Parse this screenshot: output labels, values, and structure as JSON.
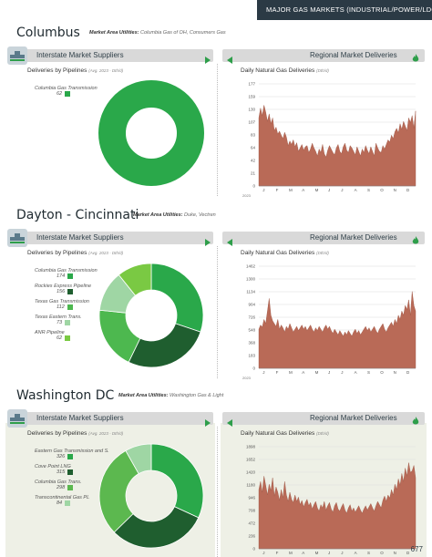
{
  "header": {
    "title": "MAJOR GAS MARKETS (INDUSTRIAL/POWER/LDC)"
  },
  "page_number": "677",
  "labels": {
    "interstate": "Interstate Market Suppliers",
    "regional": "Regional Market Deliveries",
    "deliveries_by_pipelines": "Deliveries by Pipelines",
    "avg_note": "(Avg. 2023 - Dth/d)",
    "daily_title": "Daily Natural Gas Deliveries",
    "daily_unit": "(Dth/d)",
    "market_area": "Market Area Utilities:",
    "year": "2023"
  },
  "colors": {
    "bar_grey": "#d9d9d9",
    "accent_green": "#2e9e4a",
    "area_fill": "#b96a57"
  },
  "sections": [
    {
      "city": "Columbus",
      "utilities": "Columbia Gas of OH, Consumers Gas",
      "pipelines": [
        {
          "name": "Columbia Gas Transmission",
          "value": "62",
          "color": "#2aa84a"
        }
      ],
      "chart_data": {
        "type": "area",
        "title": "Daily Natural Gas Deliveries",
        "xlabel": "2023",
        "ytick_labels": [
          "177",
          "159",
          "130",
          "107",
          "83",
          "64",
          "42",
          "21",
          "0"
        ],
        "ylim": [
          0,
          177
        ],
        "months": [
          "J",
          "F",
          "M",
          "A",
          "M",
          "J",
          "J",
          "A",
          "S",
          "O",
          "N",
          "D"
        ],
        "y": [
          118,
          135,
          122,
          140,
          128,
          112,
          125,
          108,
          118,
          96,
          102,
          90,
          95,
          88,
          82,
          93,
          85,
          70,
          78,
          72,
          80,
          68,
          75,
          60,
          66,
          72,
          62,
          68,
          70,
          58,
          64,
          74,
          66,
          60,
          52,
          64,
          58,
          72,
          56,
          50,
          62,
          70,
          64,
          58,
          54,
          66,
          72,
          60,
          56,
          68,
          74,
          62,
          58,
          70,
          66,
          60,
          54,
          68,
          60,
          52,
          64,
          58,
          70,
          62,
          56,
          68,
          60,
          52,
          74,
          66,
          60,
          58,
          70,
          64,
          72,
          80,
          76,
          88,
          82,
          94,
          100,
          92,
          108,
          98,
          112,
          104,
          96,
          118,
          110,
          122,
          100,
          130
        ]
      }
    },
    {
      "city": "Dayton - Cincinnati",
      "utilities": "Duke, Vectren",
      "pipelines": [
        {
          "name": "Columbia Gas Transmission",
          "value": "174",
          "color": "#2aa84a"
        },
        {
          "name": "Rockies Express Pipeline",
          "value": "156",
          "color": "#1f5e2f"
        },
        {
          "name": "Texas Gas Transmission",
          "value": "112",
          "color": "#4db84f"
        },
        {
          "name": "Texas Eastern Trans.",
          "value": "73",
          "color": "#9fd6a4"
        },
        {
          "name": "ANR Pipeline",
          "value": "62",
          "color": "#7ac943"
        }
      ],
      "chart_data": {
        "type": "area",
        "title": "Daily Natural Gas Deliveries",
        "xlabel": "2023",
        "ytick_labels": [
          "1462",
          "1300",
          "1134",
          "904",
          "726",
          "548",
          "368",
          "183",
          "0"
        ],
        "ylim": [
          0,
          1462
        ],
        "months": [
          "J",
          "F",
          "M",
          "A",
          "M",
          "J",
          "J",
          "A",
          "S",
          "O",
          "N",
          "D"
        ],
        "y": [
          560,
          620,
          590,
          700,
          640,
          820,
          1000,
          760,
          680,
          640,
          600,
          700,
          560,
          620,
          580,
          520,
          600,
          560,
          640,
          580,
          520,
          560,
          600,
          540,
          580,
          620,
          560,
          600,
          540,
          580,
          620,
          560,
          520,
          580,
          540,
          600,
          560,
          520,
          580,
          620,
          560,
          600,
          540,
          500,
          560,
          520,
          480,
          540,
          500,
          460,
          520,
          480,
          540,
          500,
          460,
          520,
          560,
          500,
          540,
          480,
          520,
          560,
          600,
          540,
          580,
          520,
          560,
          600,
          540,
          500,
          560,
          600,
          640,
          560,
          520,
          580,
          620,
          660,
          600,
          700,
          640,
          760,
          700,
          820,
          760,
          900,
          840,
          980,
          760,
          1100,
          900,
          820
        ]
      }
    },
    {
      "city": "Washington DC",
      "utilities": "Washington Gas & Light",
      "pipelines": [
        {
          "name": "Eastern Gas Transmission and S.",
          "value": "326",
          "color": "#2aa84a"
        },
        {
          "name": "Cove Point LNG",
          "value": "315",
          "color": "#1f5e2f"
        },
        {
          "name": "Columbia Gas Trans.",
          "value": "298",
          "color": "#5cb84f"
        },
        {
          "name": "Transcontinental Gas PL",
          "value": "84",
          "color": "#9fd6a4"
        }
      ],
      "chart_data": {
        "type": "area",
        "title": "Daily Natural Gas Deliveries",
        "xlabel": "2023",
        "ytick_labels": [
          "1898",
          "1652",
          "1420",
          "1180",
          "946",
          "708",
          "472",
          "236",
          "0"
        ],
        "ylim": [
          0,
          1898
        ],
        "months": [
          "J",
          "F",
          "M",
          "A",
          "M",
          "J",
          "J",
          "A",
          "S",
          "O",
          "N",
          "D"
        ],
        "y": [
          1100,
          1250,
          1050,
          1350,
          1180,
          1000,
          1200,
          1080,
          1320,
          980,
          1150,
          1050,
          900,
          1100,
          950,
          1250,
          1000,
          880,
          1050,
          920,
          860,
          1000,
          880,
          960,
          820,
          900,
          780,
          860,
          920,
          800,
          860,
          740,
          820,
          880,
          760,
          700,
          820,
          760,
          880,
          720,
          800,
          860,
          740,
          680,
          800,
          860,
          740,
          700,
          780,
          840,
          720,
          660,
          760,
          820,
          700,
          760,
          680,
          740,
          800,
          720,
          660,
          740,
          800,
          720,
          780,
          840,
          760,
          700,
          800,
          880,
          820,
          760,
          900,
          980,
          880,
          1000,
          940,
          1100,
          1000,
          1200,
          1100,
          1300,
          1180,
          1400,
          1250,
          1500,
          1350,
          1600,
          1420,
          1450,
          1550,
          1320
        ]
      }
    }
  ]
}
